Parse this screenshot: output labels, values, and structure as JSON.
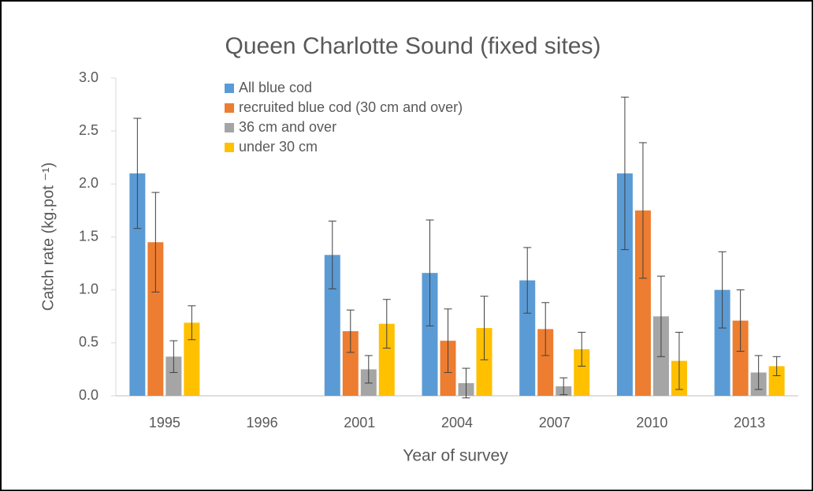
{
  "chart_data": {
    "type": "bar",
    "title": "Queen Charlotte Sound (fixed sites)",
    "xlabel": "Year of survey",
    "ylabel": "Catch rate (kg.pot ⁻¹)",
    "categories": [
      "1995",
      "1996",
      "2001",
      "2004",
      "2007",
      "2010",
      "2013"
    ],
    "series": [
      {
        "name": "All blue cod",
        "color": "#5B9BD5",
        "values": [
          2.1,
          null,
          1.33,
          1.16,
          1.09,
          2.1,
          1.0
        ],
        "errors": [
          0.52,
          null,
          0.32,
          0.5,
          0.31,
          0.72,
          0.36
        ]
      },
      {
        "name": "recruited blue cod (30 cm and over)",
        "color": "#ED7D31",
        "values": [
          1.45,
          null,
          0.61,
          0.52,
          0.63,
          1.75,
          0.71
        ],
        "errors": [
          0.47,
          null,
          0.2,
          0.3,
          0.25,
          0.64,
          0.29
        ]
      },
      {
        "name": "36 cm and over",
        "color": "#A5A5A5",
        "values": [
          0.37,
          null,
          0.25,
          0.12,
          0.09,
          0.75,
          0.22
        ],
        "errors": [
          0.15,
          null,
          0.13,
          0.14,
          0.08,
          0.38,
          0.16
        ]
      },
      {
        "name": "under 30 cm",
        "color": "#FFC000",
        "values": [
          0.69,
          null,
          0.68,
          0.64,
          0.44,
          0.33,
          0.28
        ],
        "errors": [
          0.16,
          null,
          0.23,
          0.3,
          0.16,
          0.27,
          0.09
        ]
      }
    ],
    "ylim": [
      0,
      3
    ],
    "yticks": [
      {
        "value": 0,
        "label": "0.0"
      },
      {
        "value": 0.5,
        "label": "0.5"
      },
      {
        "value": 1,
        "label": "1.0"
      },
      {
        "value": 1.5,
        "label": "1.5"
      },
      {
        "value": 2,
        "label": "2.0"
      },
      {
        "value": 2.5,
        "label": "2.5"
      },
      {
        "value": 3,
        "label": "3.0"
      }
    ],
    "grid": false,
    "legend": "top"
  }
}
